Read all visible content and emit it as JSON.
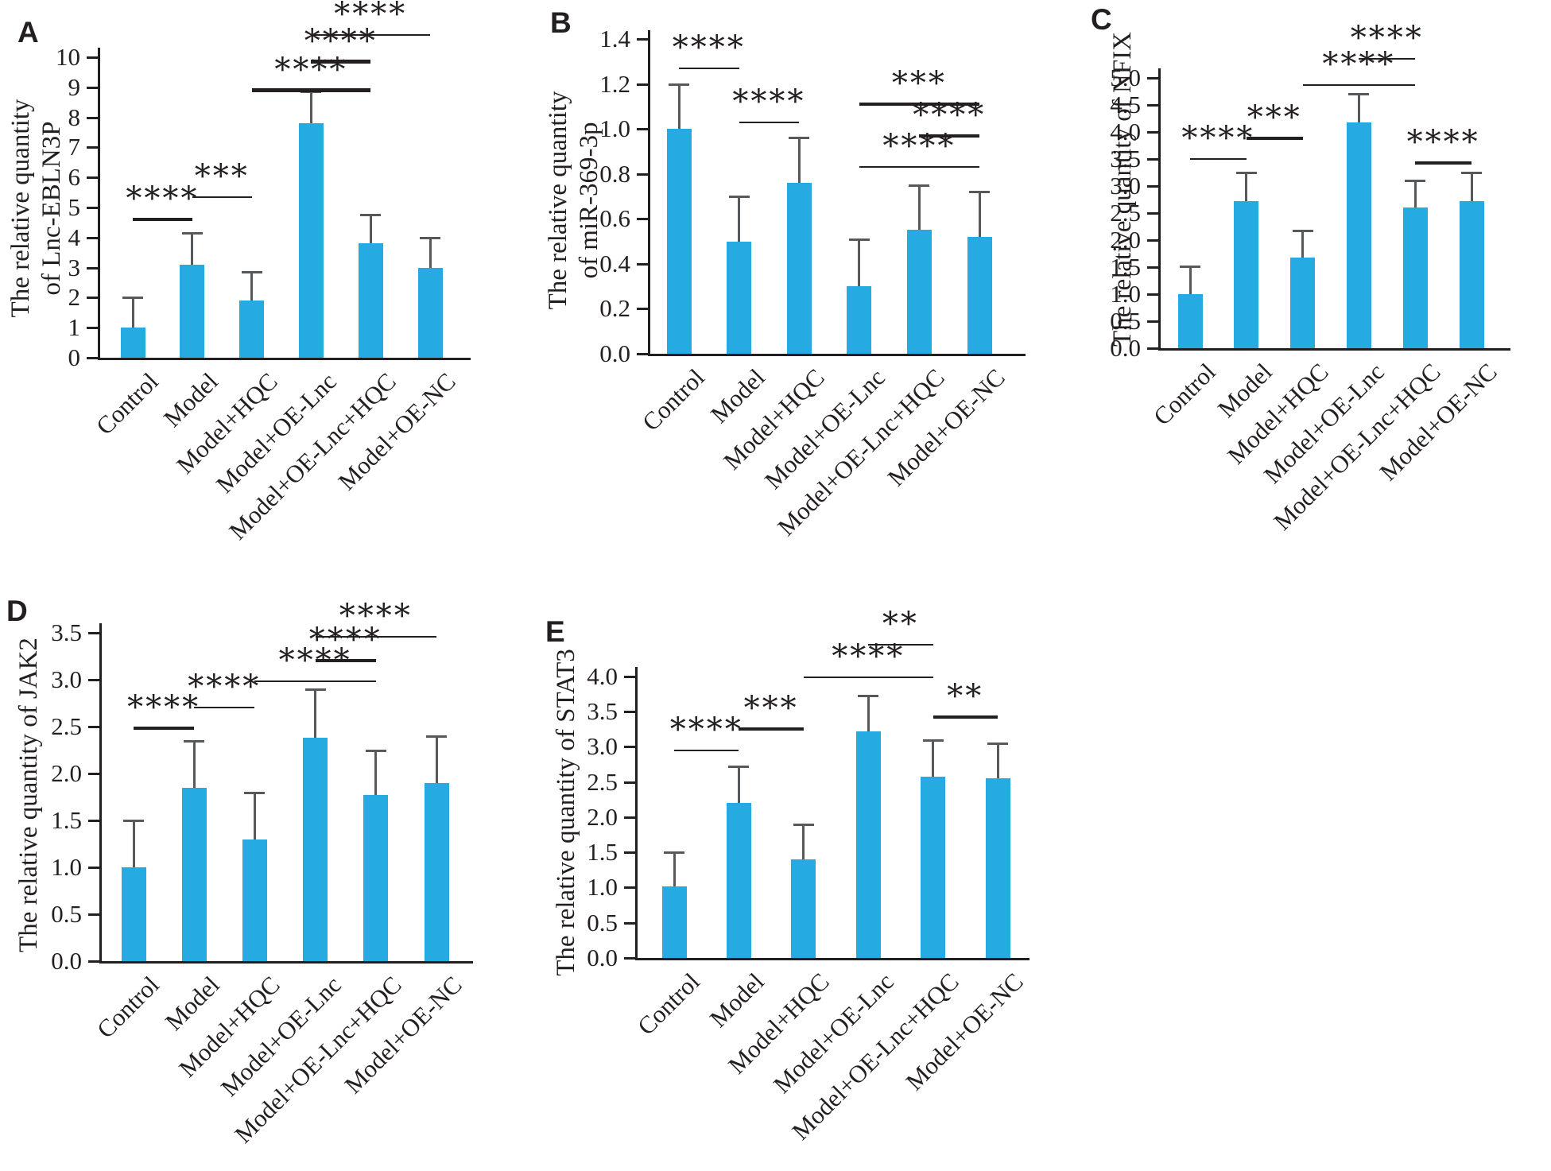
{
  "figure": {
    "background": "#ffffff",
    "description": "Five-panel bar figure (A-E) of qRT-PCR relative quantities across six treatment groups"
  },
  "colors": {
    "bar": "#25aae1",
    "error_bar": "#58595b",
    "axis": "#231f20",
    "text": "#231f20"
  },
  "categories": [
    "Control",
    "Model",
    "Model+HQC",
    "Model+OE-Lnc",
    "Model+OE-Lnc+HQC",
    "Model+OE-NC"
  ],
  "chart_data": [
    {
      "panel_label": "A",
      "type": "bar",
      "title": "",
      "xlabel": "",
      "ylabel_lines": [
        "The relative quantity",
        "of Lnc-EBLN3P"
      ],
      "categories": [
        "Control",
        "Model",
        "Model+HQC",
        "Model+OE-Lnc",
        "Model+OE-Lnc+HQC",
        "Model+OE-NC"
      ],
      "values": [
        1.0,
        3.1,
        1.9,
        7.8,
        3.8,
        3.0
      ],
      "errors_up": [
        1.0,
        1.05,
        0.95,
        1.05,
        0.95,
        1.0
      ],
      "ylim": [
        0,
        10
      ],
      "ytick_step": 1,
      "ytick_decimals": 0,
      "grid": false,
      "legend": null,
      "significance": [
        {
          "from": 0,
          "to": 1,
          "stars": "****",
          "y": 4.6,
          "weight": 4
        },
        {
          "from": 1,
          "to": 2,
          "stars": "***",
          "y": 5.35,
          "weight": 2
        },
        {
          "from": 2,
          "to": 4,
          "stars": "****",
          "y": 8.9,
          "weight": 5
        },
        {
          "from": 3,
          "to": 4,
          "stars": "****",
          "y": 9.85,
          "weight": 5
        },
        {
          "from": 3,
          "to": 5,
          "stars": "****",
          "y": 10.75,
          "weight": 2
        }
      ]
    },
    {
      "panel_label": "B",
      "type": "bar",
      "title": "",
      "xlabel": "",
      "ylabel_lines": [
        "The relative quantity",
        "of miR-369-3p"
      ],
      "categories": [
        "Control",
        "Model",
        "Model+HQC",
        "Model+OE-Lnc",
        "Model+OE-Lnc+HQC",
        "Model+OE-NC"
      ],
      "values": [
        1.0,
        0.5,
        0.76,
        0.3,
        0.55,
        0.52
      ],
      "errors_up": [
        0.2,
        0.2,
        0.2,
        0.21,
        0.2,
        0.2
      ],
      "ylim": [
        0,
        1.4
      ],
      "ytick_step": 0.2,
      "ytick_decimals": 1,
      "grid": false,
      "legend": null,
      "significance": [
        {
          "from": 0,
          "to": 1,
          "stars": "****",
          "y": 1.27,
          "weight": 2
        },
        {
          "from": 1,
          "to": 2,
          "stars": "****",
          "y": 1.03,
          "weight": 2
        },
        {
          "from": 3,
          "to": 5,
          "stars": "***",
          "y": 1.11,
          "weight": 4
        },
        {
          "from": 4,
          "to": 5,
          "stars": "****",
          "y": 0.97,
          "weight": 4
        },
        {
          "from": 3,
          "to": 5,
          "stars": "****",
          "y": 0.83,
          "weight": 2
        }
      ]
    },
    {
      "panel_label": "C",
      "type": "bar",
      "title": "",
      "xlabel": "",
      "ylabel_lines": [
        "The relative quantity of NFIX"
      ],
      "categories": [
        "Control",
        "Model",
        "Model+HQC",
        "Model+OE-Lnc",
        "Model+OE-Lnc+HQC",
        "Model+OE-NC"
      ],
      "values": [
        1.0,
        2.72,
        1.68,
        4.18,
        2.6,
        2.72
      ],
      "errors_up": [
        0.52,
        0.53,
        0.5,
        0.52,
        0.5,
        0.53
      ],
      "ylim": [
        0,
        5.0
      ],
      "ytick_step": 0.5,
      "ytick_decimals": 1,
      "grid": false,
      "legend": null,
      "significance": [
        {
          "from": 0,
          "to": 1,
          "stars": "****",
          "y": 3.5,
          "weight": 2
        },
        {
          "from": 1,
          "to": 2,
          "stars": "***",
          "y": 3.88,
          "weight": 4
        },
        {
          "from": 2,
          "to": 4,
          "stars": "****",
          "y": 4.87,
          "weight": 2
        },
        {
          "from": 3,
          "to": 4,
          "stars": "****",
          "y": 5.35,
          "weight": 2
        },
        {
          "from": 4,
          "to": 5,
          "stars": "****",
          "y": 3.42,
          "weight": 4
        }
      ]
    },
    {
      "panel_label": "D",
      "type": "bar",
      "title": "",
      "xlabel": "",
      "ylabel_lines": [
        "The relative quantity of JAK2"
      ],
      "categories": [
        "Control",
        "Model",
        "Model+HQC",
        "Model+OE-Lnc",
        "Model+OE-Lnc+HQC",
        "Model+OE-NC"
      ],
      "values": [
        1.0,
        1.85,
        1.3,
        2.38,
        1.77,
        1.9
      ],
      "errors_up": [
        0.5,
        0.5,
        0.5,
        0.52,
        0.48,
        0.5
      ],
      "ylim": [
        0,
        3.5
      ],
      "ytick_step": 0.5,
      "ytick_decimals": 1,
      "grid": false,
      "legend": null,
      "significance": [
        {
          "from": 0,
          "to": 1,
          "stars": "****",
          "y": 2.48,
          "weight": 4
        },
        {
          "from": 1,
          "to": 2,
          "stars": "****",
          "y": 2.7,
          "weight": 2
        },
        {
          "from": 2,
          "to": 4,
          "stars": "****",
          "y": 2.98,
          "weight": 2
        },
        {
          "from": 3,
          "to": 4,
          "stars": "****",
          "y": 3.2,
          "weight": 4
        },
        {
          "from": 3,
          "to": 5,
          "stars": "****",
          "y": 3.46,
          "weight": 2
        }
      ]
    },
    {
      "panel_label": "E",
      "type": "bar",
      "title": "",
      "xlabel": "",
      "ylabel_lines": [
        "The relative quantity of STAT3"
      ],
      "categories": [
        "Control",
        "Model",
        "Model+HQC",
        "Model+OE-Lnc",
        "Model+OE-Lnc+HQC",
        "Model+OE-NC"
      ],
      "values": [
        1.02,
        2.2,
        1.4,
        3.22,
        2.57,
        2.55
      ],
      "errors_up": [
        0.48,
        0.52,
        0.5,
        0.51,
        0.52,
        0.5
      ],
      "ylim": [
        0,
        4.0
      ],
      "ytick_step": 0.5,
      "ytick_decimals": 1,
      "grid": false,
      "legend": null,
      "significance": [
        {
          "from": 0,
          "to": 1,
          "stars": "****",
          "y": 2.95,
          "weight": 2
        },
        {
          "from": 1,
          "to": 2,
          "stars": "***",
          "y": 3.25,
          "weight": 4
        },
        {
          "from": 2,
          "to": 4,
          "stars": "****",
          "y": 3.98,
          "weight": 2
        },
        {
          "from": 3,
          "to": 4,
          "stars": "**",
          "y": 4.45,
          "weight": 2
        },
        {
          "from": 4,
          "to": 5,
          "stars": "**",
          "y": 3.42,
          "weight": 4
        }
      ]
    }
  ]
}
